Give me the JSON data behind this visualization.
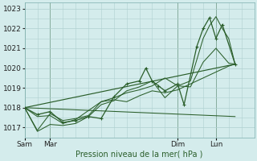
{
  "background_color": "#d4ecec",
  "grid_color": "#b0d0d0",
  "line_color": "#2a5e2a",
  "marker_color": "#2a5e2a",
  "xlabel": "Pression niveau de la mer( hPa )",
  "ylim": [
    1016.5,
    1023.3
  ],
  "yticks": [
    1017,
    1018,
    1019,
    1020,
    1021,
    1022,
    1023
  ],
  "xtick_labels": [
    "Sam",
    "Mar",
    "Dim",
    "Lun"
  ],
  "xtick_positions": [
    0,
    8,
    48,
    60
  ],
  "vlines": [
    0,
    8,
    48,
    60
  ],
  "total_hours": 72,
  "series_main": [
    0,
    1018.0,
    4,
    1017.65,
    8,
    1017.8,
    12,
    1017.25,
    16,
    1017.35,
    20,
    1017.55,
    24,
    1017.45,
    28,
    1018.55,
    32,
    1019.2,
    36,
    1019.35,
    38,
    1020.0,
    40,
    1019.35,
    42,
    1019.1,
    44,
    1018.85,
    48,
    1019.2,
    50,
    1018.15,
    54,
    1021.1,
    56,
    1022.0,
    58,
    1022.55,
    60,
    1021.5,
    62,
    1022.2,
    66,
    1020.2
  ],
  "series_trend": [
    0,
    1018.0,
    66,
    1020.2
  ],
  "extra_lines": [
    [
      0,
      1018.0,
      4,
      1017.55,
      8,
      1017.6,
      12,
      1017.2,
      16,
      1017.4,
      20,
      1017.85,
      24,
      1018.3,
      28,
      1018.5,
      32,
      1018.75,
      36,
      1018.9,
      40,
      1019.1,
      44,
      1019.5,
      48,
      1019.1,
      52,
      1019.05,
      56,
      1020.3,
      60,
      1021.0,
      64,
      1020.25,
      66,
      1020.2
    ],
    [
      0,
      1018.0,
      4,
      1016.8,
      8,
      1017.15,
      12,
      1017.1,
      16,
      1017.2,
      20,
      1017.55,
      24,
      1018.15,
      28,
      1018.35,
      32,
      1018.85,
      36,
      1019.05,
      40,
      1019.35,
      44,
      1018.5,
      48,
      1019.1,
      52,
      1019.35,
      56,
      1021.5,
      58,
      1022.15,
      60,
      1022.6,
      62,
      1022.0,
      64,
      1021.5,
      66,
      1020.2
    ],
    [
      0,
      1018.0,
      4,
      1016.85,
      8,
      1017.7,
      12,
      1017.35,
      16,
      1017.45,
      20,
      1017.6,
      24,
      1018.3,
      28,
      1018.4,
      32,
      1018.3,
      36,
      1018.6,
      40,
      1018.85,
      44,
      1018.75,
      48,
      1018.9,
      52,
      1019.2,
      56,
      1019.5,
      60,
      1019.8,
      64,
      1020.1,
      66,
      1020.2
    ],
    [
      0,
      1018.0,
      66,
      1017.55
    ]
  ]
}
